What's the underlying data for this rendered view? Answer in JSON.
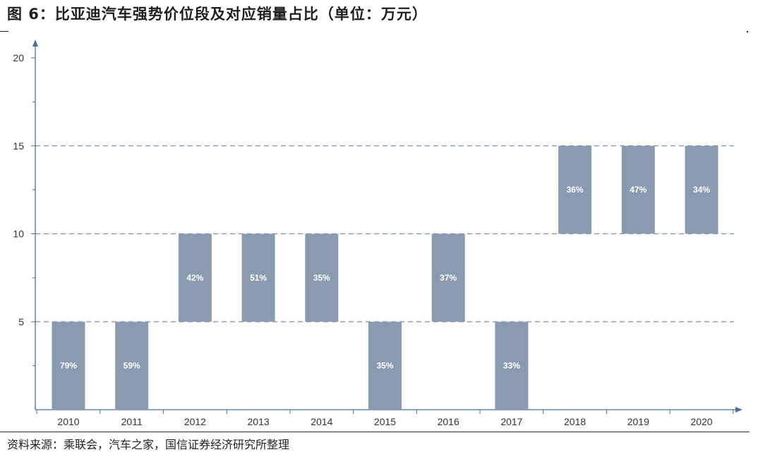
{
  "title": "图 6：比亚迪汽车强势价位段及对应销量占比（单位：万元）",
  "source": "资料来源：乘联会，汽车之家，国信证券经济研究所整理",
  "colors": {
    "bar": "#8a9bb1",
    "grid": "#7d8fa6",
    "axis": "#4a6f99",
    "label": "#ffffff"
  },
  "chart_data": {
    "type": "bar",
    "subtype": "floating-range",
    "title": "",
    "xlabel": "",
    "ylabel": "",
    "ylim": [
      0,
      20
    ],
    "yticks": [
      5,
      10,
      15,
      20
    ],
    "grid": "dashed at 5, 10, 15",
    "categories": [
      "2010",
      "2011",
      "2012",
      "2013",
      "2014",
      "2015",
      "2016",
      "2017",
      "2018",
      "2019",
      "2020"
    ],
    "bars": [
      {
        "year": "2010",
        "low": 0,
        "high": 5,
        "share": "79%"
      },
      {
        "year": "2011",
        "low": 0,
        "high": 5,
        "share": "59%"
      },
      {
        "year": "2012",
        "low": 5,
        "high": 10,
        "share": "42%"
      },
      {
        "year": "2013",
        "low": 5,
        "high": 10,
        "share": "51%"
      },
      {
        "year": "2014",
        "low": 5,
        "high": 10,
        "share": "35%"
      },
      {
        "year": "2015",
        "low": 0,
        "high": 5,
        "share": "35%"
      },
      {
        "year": "2016",
        "low": 5,
        "high": 10,
        "share": "37%"
      },
      {
        "year": "2017",
        "low": 0,
        "high": 5,
        "share": "33%"
      },
      {
        "year": "2018",
        "low": 10,
        "high": 15,
        "share": "36%"
      },
      {
        "year": "2019",
        "low": 10,
        "high": 15,
        "share": "47%"
      },
      {
        "year": "2020",
        "low": 10,
        "high": 15,
        "share": "34%"
      }
    ]
  }
}
